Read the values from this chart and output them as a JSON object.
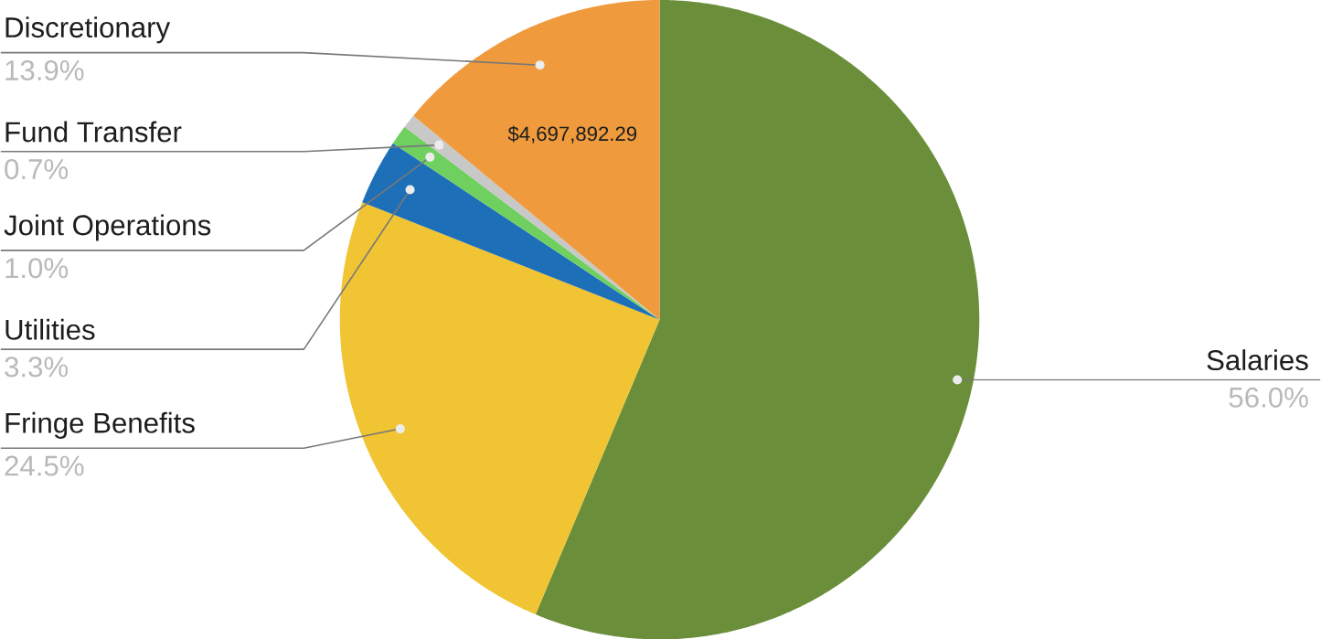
{
  "chart_data": {
    "type": "pie",
    "categories": [
      "Salaries",
      "Fringe Benefits",
      "Utilities",
      "Joint Operations",
      "Fund Transfer",
      "Discretionary"
    ],
    "values": [
      56.0,
      24.5,
      3.3,
      1.0,
      0.7,
      13.9
    ],
    "colors": [
      "#6a8e3a",
      "#f0c432",
      "#1d6fb8",
      "#6fcf5f",
      "#c8c8c8",
      "#ef9a3c"
    ],
    "value_labels": [
      "56.0%",
      "24.5%",
      "3.3%",
      "1.0%",
      "0.7%",
      "13.9%"
    ],
    "annotations": [
      {
        "text": "$4,697,892.29",
        "x": "Discretionary"
      }
    ]
  }
}
